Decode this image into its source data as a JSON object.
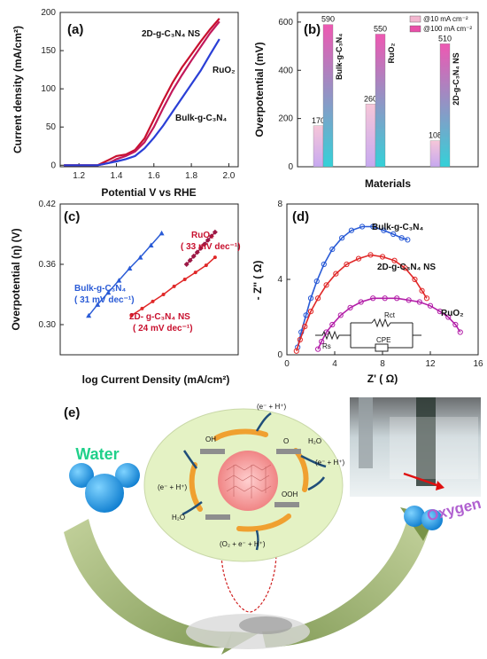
{
  "chart_data": [
    {
      "panel": "(a)",
      "type": "line",
      "xlabel": "Potential V vs RHE",
      "ylabel": "Current density (mA/cm²)",
      "xlim": [
        1.1,
        2.05
      ],
      "ylim": [
        -2,
        200
      ],
      "xticks": [
        "1.2",
        "1.4",
        "1.6",
        "1.8",
        "2.0"
      ],
      "yticks": [
        "0",
        "50",
        "100",
        "150",
        "200"
      ],
      "series": [
        {
          "name": "2D-g-C₃N₄ NS",
          "color": "#c8102e",
          "x": [
            1.12,
            1.3,
            1.36,
            1.4,
            1.45,
            1.5,
            1.55,
            1.6,
            1.65,
            1.7,
            1.75,
            1.8,
            1.85,
            1.9,
            1.95
          ],
          "y": [
            0,
            0,
            7,
            12,
            14,
            20,
            35,
            60,
            85,
            108,
            128,
            145,
            162,
            178,
            192
          ]
        },
        {
          "name": "RuO₂",
          "color": "#c2185b",
          "x": [
            1.12,
            1.3,
            1.36,
            1.4,
            1.45,
            1.5,
            1.55,
            1.6,
            1.65,
            1.7,
            1.75,
            1.8,
            1.85,
            1.9,
            1.95
          ],
          "y": [
            0,
            0,
            3,
            8,
            12,
            18,
            30,
            50,
            75,
            98,
            118,
            137,
            155,
            173,
            188
          ]
        },
        {
          "name": "Bulk-g-C₃N₄",
          "color": "#2a3fd6",
          "x": [
            1.12,
            1.3,
            1.4,
            1.45,
            1.5,
            1.55,
            1.6,
            1.65,
            1.7,
            1.75,
            1.8,
            1.85,
            1.9,
            1.95
          ],
          "y": [
            0,
            0,
            5,
            8,
            12,
            22,
            36,
            52,
            70,
            88,
            106,
            124,
            145,
            165
          ]
        }
      ]
    },
    {
      "panel": "(b)",
      "type": "bar",
      "xlabel": "Materials",
      "ylabel": "Overpotential (mV)",
      "ylim": [
        0,
        640
      ],
      "yticks": [
        "0",
        "200",
        "400",
        "600"
      ],
      "categories": [
        "Bulk-g-C₃N₄",
        "RuO₂",
        "2D-g-C₃N₄ NS"
      ],
      "series": [
        {
          "name": "@10 mA cm⁻²",
          "values": [
            170,
            260,
            108
          ]
        },
        {
          "name": "@100 mA cm⁻²",
          "values": [
            590,
            550,
            510
          ]
        }
      ],
      "legend": "top-right"
    },
    {
      "panel": "(c)",
      "type": "line",
      "xlabel": "log Current Density (mA/cm²)",
      "ylabel": "Overpotential (η) (V)",
      "xlim": [
        0,
        1
      ],
      "ylim": [
        0.27,
        0.42
      ],
      "yticks": [
        "0.30",
        "0.36",
        "0.42"
      ],
      "series": [
        {
          "name": "Bulk-g-C₃N₄",
          "annotation": "( 31 mV dec⁻¹)",
          "color": "#2a5bd6",
          "x": [
            0.16,
            0.21,
            0.27,
            0.33,
            0.39,
            0.45,
            0.51,
            0.57
          ],
          "y": [
            0.309,
            0.32,
            0.332,
            0.344,
            0.356,
            0.367,
            0.379,
            0.391
          ]
        },
        {
          "name": "RuO₂",
          "annotation": "( 33 mV dec⁻¹)",
          "color": "#9c1845",
          "x": [
            0.71,
            0.73,
            0.75,
            0.77,
            0.79,
            0.81,
            0.83,
            0.85,
            0.87
          ],
          "y": [
            0.36,
            0.364,
            0.368,
            0.372,
            0.376,
            0.38,
            0.384,
            0.388,
            0.392
          ]
        },
        {
          "name": "2D- g-C₃N₄ NS",
          "annotation": "( 24 mV dec⁻¹)",
          "color": "#e02828",
          "x": [
            0.4,
            0.46,
            0.52,
            0.58,
            0.64,
            0.7,
            0.76,
            0.82,
            0.87
          ],
          "y": [
            0.309,
            0.316,
            0.323,
            0.33,
            0.338,
            0.345,
            0.352,
            0.359,
            0.367
          ]
        }
      ]
    },
    {
      "panel": "(d)",
      "type": "scatter",
      "xlabel": "Z' ( Ω)",
      "ylabel": "- Z'' ( Ω)",
      "xlim": [
        0,
        16
      ],
      "ylim": [
        0,
        8
      ],
      "xticks": [
        "0",
        "4",
        "8",
        "12",
        "16"
      ],
      "yticks": [
        "0",
        "4",
        "8"
      ],
      "series": [
        {
          "name": "Bulk-g-C₃N₄",
          "color": "#2a5bd6",
          "x": [
            0.9,
            1.2,
            1.6,
            2.0,
            2.5,
            3.1,
            3.8,
            4.6,
            5.4,
            6.3,
            7.2,
            8.1,
            8.9,
            9.6,
            10.1
          ],
          "y": [
            0.4,
            1.2,
            2.1,
            3.0,
            3.9,
            4.8,
            5.6,
            6.2,
            6.6,
            6.8,
            6.8,
            6.6,
            6.4,
            6.2,
            6.1
          ]
        },
        {
          "name": "2D-g-C₃N₄ NS",
          "color": "#e02828",
          "x": [
            0.8,
            1.1,
            1.5,
            2.0,
            2.6,
            3.3,
            4.1,
            5.0,
            6.0,
            7.0,
            8.0,
            9.0,
            9.9,
            10.7,
            11.3,
            11.7
          ],
          "y": [
            0.2,
            0.8,
            1.5,
            2.3,
            3.0,
            3.7,
            4.3,
            4.8,
            5.1,
            5.3,
            5.2,
            5.0,
            4.6,
            4.0,
            3.4,
            3.0
          ]
        },
        {
          "name": "RuO₂",
          "color": "#b31fa8",
          "x": [
            2.6,
            2.9,
            3.3,
            3.8,
            4.5,
            5.3,
            6.2,
            7.2,
            8.2,
            9.2,
            10.2,
            11.1,
            12.0,
            12.8,
            13.5,
            14.1,
            14.5
          ],
          "y": [
            0.3,
            0.7,
            1.2,
            1.6,
            2.1,
            2.5,
            2.8,
            3.0,
            3.0,
            3.0,
            2.9,
            2.8,
            2.6,
            2.3,
            2.0,
            1.6,
            1.2
          ]
        }
      ],
      "circuit_labels": [
        "Rs",
        "Rct",
        "CPE"
      ]
    }
  ],
  "panel_e": {
    "label": "(e)",
    "water": "Water",
    "oxygen": "Oxygen",
    "cycle_labels": [
      "(e⁻ + H⁺)",
      "O",
      "H₂O",
      "(e⁻ + H⁺)",
      "OOH",
      "(O₂ + e⁻ + H⁺)",
      "H₂O",
      "(e⁻ + H⁺)",
      "OH"
    ],
    "colors": {
      "water": "#20d08a",
      "oxygen": "#b060d0",
      "molecule": "#1e9be0",
      "circle": "#e4f2c4",
      "arrow": "#f0a030"
    }
  }
}
